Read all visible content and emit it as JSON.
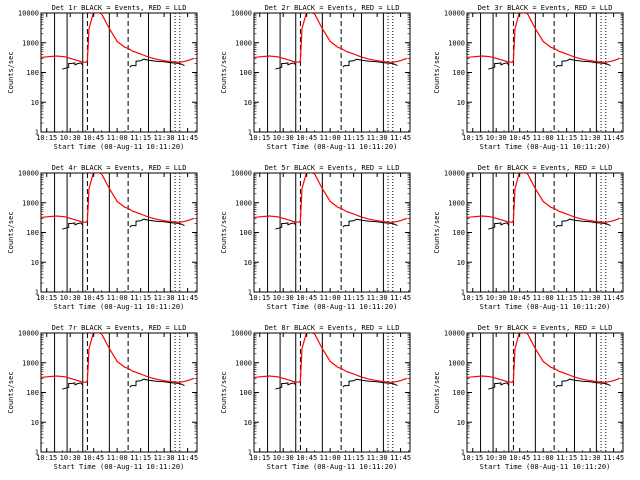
{
  "figure": {
    "background": "#ffffff",
    "axis_color": "#000000",
    "events_color": "#000000",
    "lld_color": "#ff0000"
  },
  "chart_data": [
    {
      "type": "line",
      "title": "Det 1r BLACK = Events, RED = LLD"
    },
    {
      "type": "line",
      "title": "Det 2r BLACK = Events, RED = LLD"
    },
    {
      "type": "line",
      "title": "Det 3r BLACK = Events, RED = LLD"
    },
    {
      "type": "line",
      "title": "Det 4r BLACK = Events, RED = LLD"
    },
    {
      "type": "line",
      "title": "Det 5r BLACK = Events, RED = LLD"
    },
    {
      "type": "line",
      "title": "Det 6r BLACK = Events, RED = LLD"
    },
    {
      "type": "line",
      "title": "Det 7r BLACK = Events, RED = LLD"
    },
    {
      "type": "line",
      "title": "Det 8r BLACK = Events, RED = LLD"
    },
    {
      "type": "line",
      "title": "Det 9r BLACK = Events, RED = LLD"
    }
  ],
  "shared": {
    "ylabel": "Counts/sec",
    "xlabel": "Start Time (08-Aug-11 10:11:20)",
    "y_scale": "log",
    "ylim": [
      1,
      10000
    ],
    "y_ticks": [
      1,
      10,
      100,
      1000,
      10000
    ],
    "y_tick_labels": [
      "1",
      "10",
      "100",
      "1000",
      "10000"
    ],
    "xlim": [
      "10:11:20",
      "11:51:00"
    ],
    "x_ticks": [
      "10:15",
      "10:30",
      "10:45",
      "11:00",
      "11:15",
      "11:30",
      "11:45"
    ],
    "solid_markers": [
      "10:20",
      "10:28",
      "10:38",
      "10:55",
      "11:20",
      "11:34"
    ],
    "dashed_markers": [
      "10:41",
      "11:07"
    ],
    "dotted_markers": [
      "11:37",
      "11:40"
    ],
    "lld_series": {
      "name": "LLD",
      "x": [
        "10:11",
        "10:16",
        "10:21",
        "10:26",
        "10:30",
        "10:34",
        "10:37",
        "10:40",
        "10:41",
        "10:42",
        "10:45",
        "10:50",
        "10:55",
        "11:00",
        "11:05",
        "11:07",
        "11:10",
        "11:15",
        "11:20",
        "11:25",
        "11:30",
        "11:35",
        "11:40",
        "11:45",
        "11:49"
      ],
      "y": [
        320,
        340,
        360,
        340,
        300,
        260,
        230,
        220,
        250,
        3000,
        11000,
        9500,
        3000,
        1100,
        700,
        650,
        520,
        420,
        330,
        280,
        250,
        230,
        220,
        250,
        300
      ]
    },
    "events_series": {
      "name": "Events",
      "segments": [
        {
          "x": [
            "10:25",
            "10:27",
            "10:29",
            "10:29",
            "10:31",
            "10:33",
            "10:33",
            "10:35",
            "10:37",
            "10:38"
          ],
          "y": [
            130,
            140,
            150,
            200,
            200,
            210,
            180,
            200,
            210,
            170
          ]
        },
        {
          "x": [
            "11:08",
            "11:09",
            "11:12",
            "11:12",
            "11:15",
            "11:17",
            "11:20",
            "11:25",
            "11:30",
            "11:35",
            "11:40",
            "11:43"
          ],
          "y": [
            150,
            170,
            170,
            240,
            250,
            280,
            260,
            240,
            230,
            210,
            200,
            170
          ]
        }
      ]
    }
  }
}
